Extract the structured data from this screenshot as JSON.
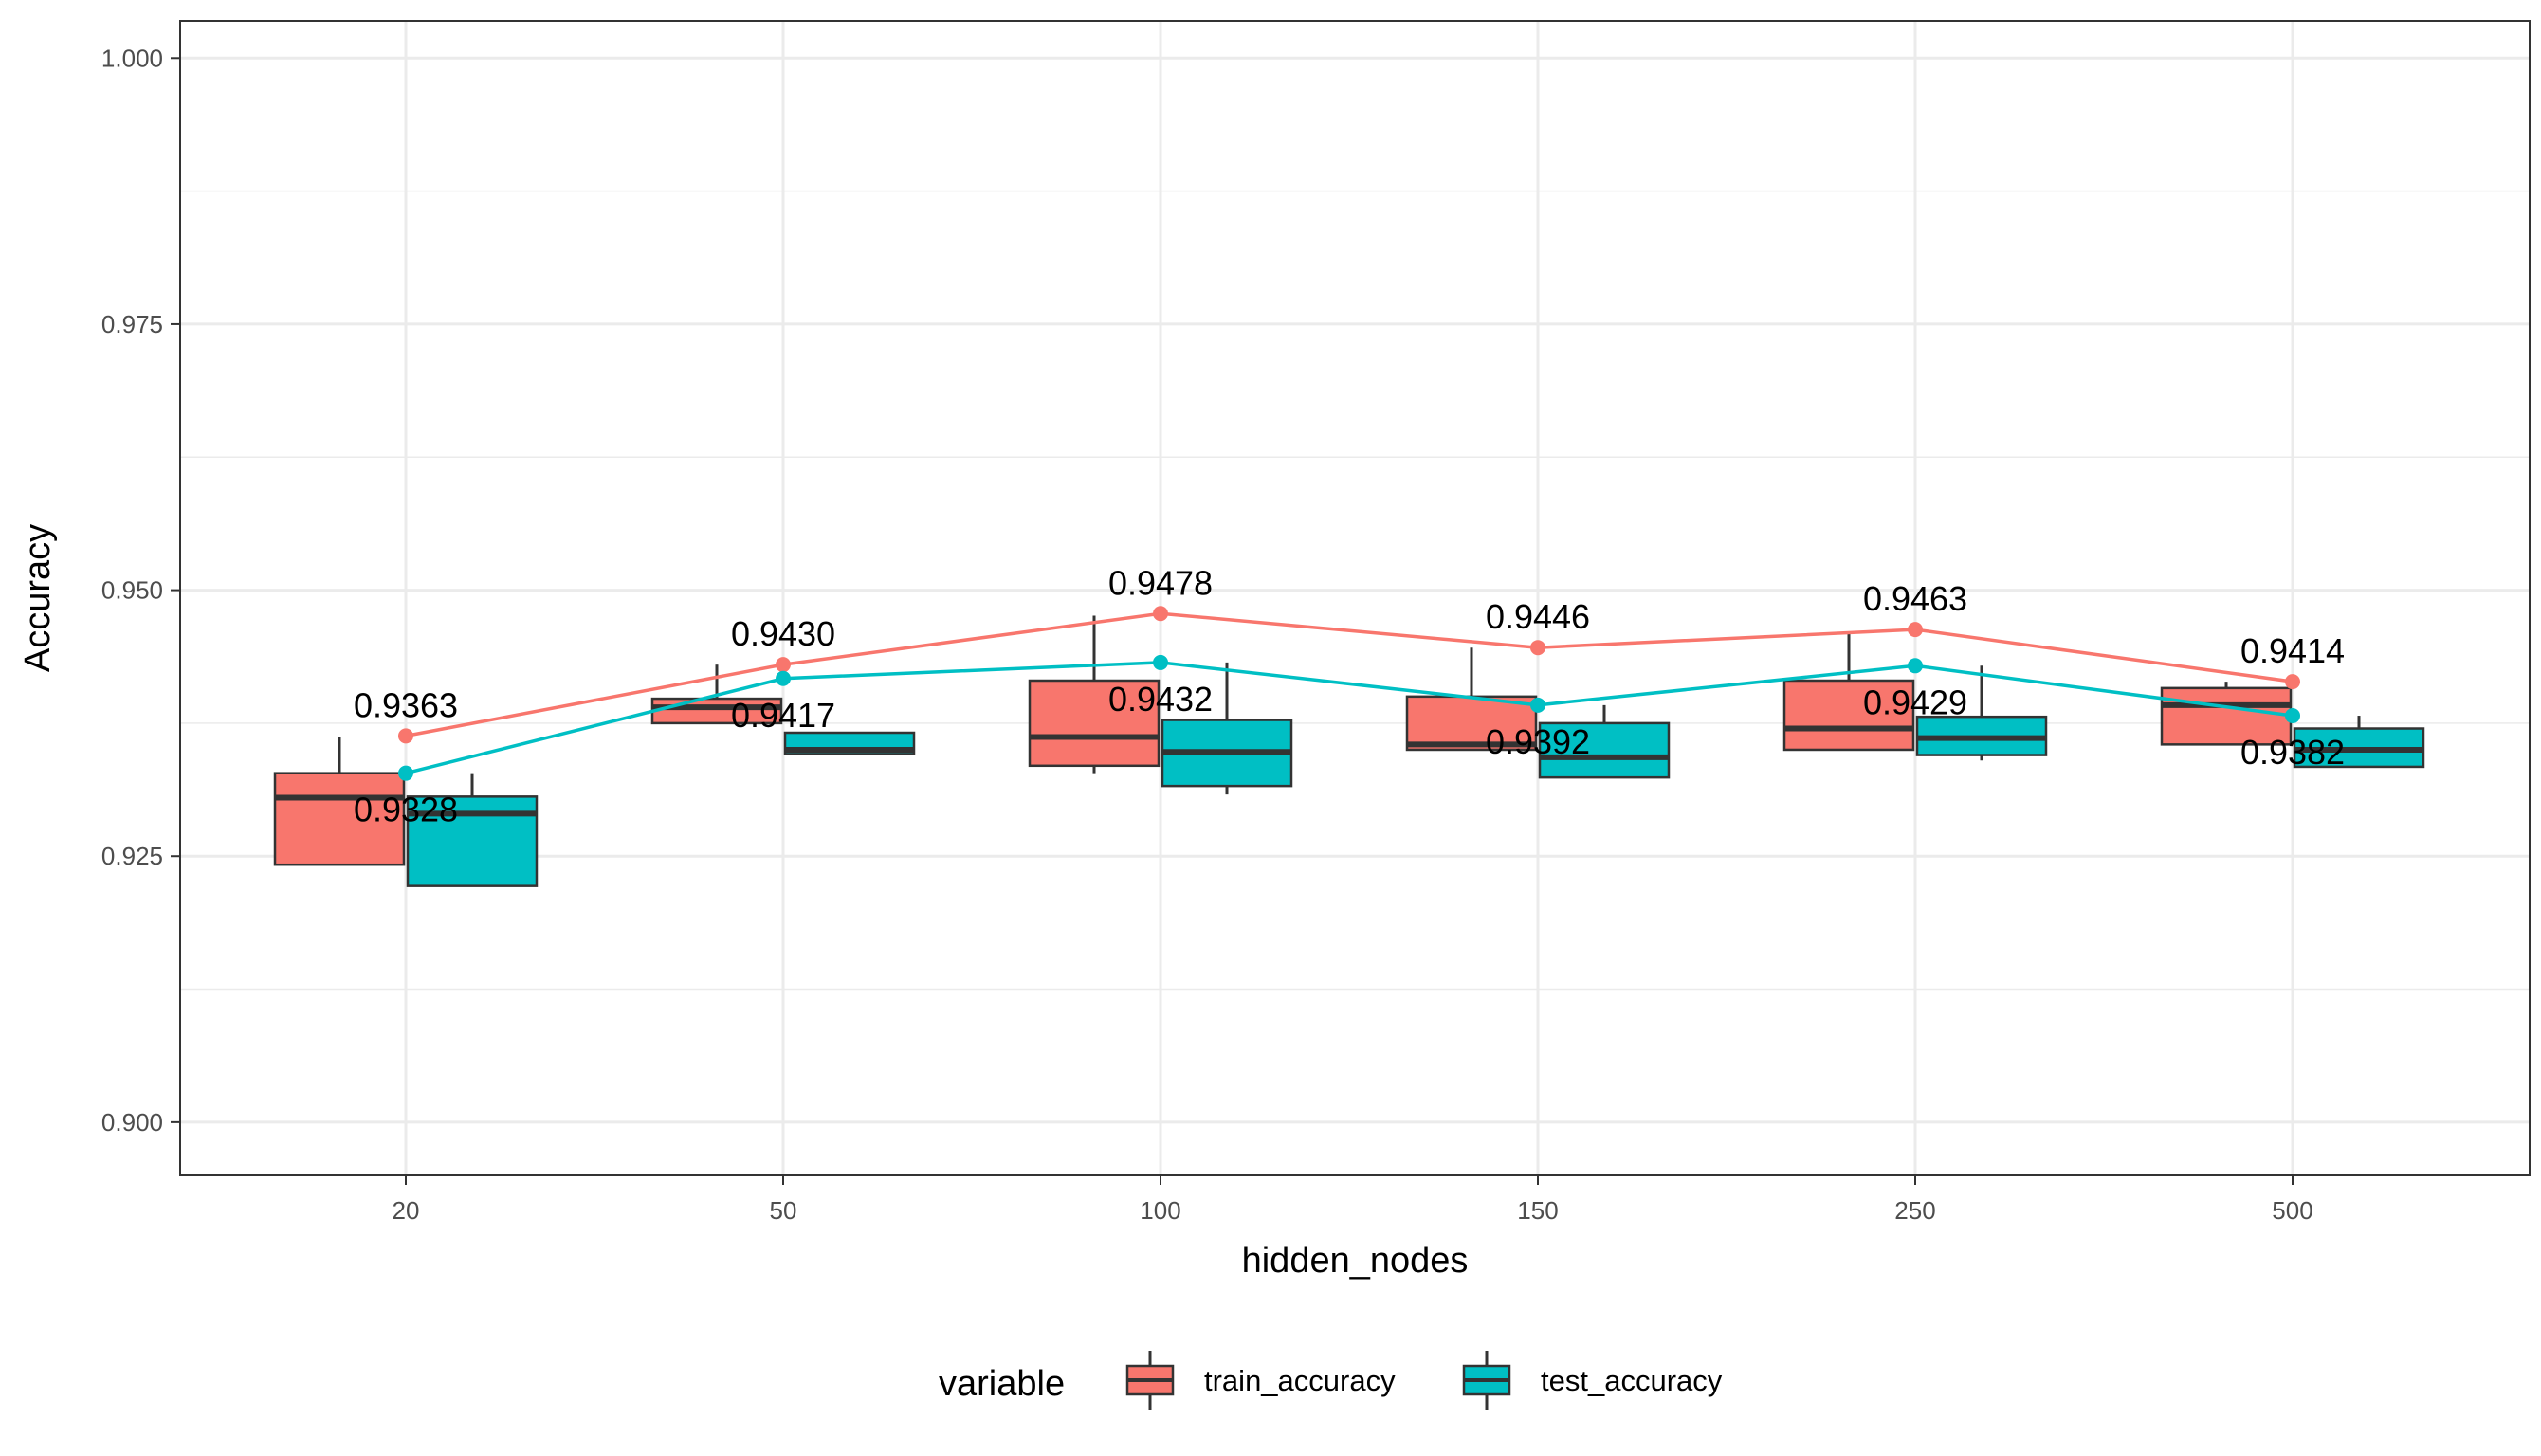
{
  "chart_data": {
    "type": "box",
    "xlabel": "hidden_nodes",
    "ylabel": "Accuracy",
    "categories": [
      "20",
      "50",
      "100",
      "150",
      "250",
      "500"
    ],
    "ylim": [
      0.895,
      1.0035
    ],
    "yticks": [
      0.9,
      0.925,
      0.95,
      0.975,
      1.0
    ],
    "ytick_labels": [
      "0.900",
      "0.925",
      "0.950",
      "0.975",
      "1.000"
    ],
    "grid": true,
    "legend": {
      "title": "variable",
      "position": "bottom",
      "entries": [
        "train_accuracy",
        "test_accuracy"
      ]
    },
    "colors": {
      "train_accuracy": "#F8766D",
      "test_accuracy": "#00BFC4"
    },
    "series": [
      {
        "name": "train_accuracy",
        "boxes": [
          {
            "whisker_low": 0.9242,
            "q1": 0.9242,
            "median": 0.9305,
            "q3": 0.9328,
            "whisker_high": 0.9362
          },
          {
            "whisker_low": 0.9375,
            "q1": 0.9375,
            "median": 0.939,
            "q3": 0.9398,
            "whisker_high": 0.943
          },
          {
            "whisker_low": 0.9328,
            "q1": 0.9335,
            "median": 0.9362,
            "q3": 0.9415,
            "whisker_high": 0.9476
          },
          {
            "whisker_low": 0.935,
            "q1": 0.935,
            "median": 0.9355,
            "q3": 0.94,
            "whisker_high": 0.9446
          },
          {
            "whisker_low": 0.935,
            "q1": 0.935,
            "median": 0.937,
            "q3": 0.9415,
            "whisker_high": 0.9461
          },
          {
            "whisker_low": 0.9355,
            "q1": 0.9355,
            "median": 0.9392,
            "q3": 0.9408,
            "whisker_high": 0.9414
          }
        ],
        "means": [
          0.9363,
          0.943,
          0.9478,
          0.9446,
          0.9463,
          0.9414
        ],
        "labels": [
          "0.9363",
          "0.9430",
          "0.9478",
          "0.9446",
          "0.9463",
          "0.9414"
        ]
      },
      {
        "name": "test_accuracy",
        "boxes": [
          {
            "whisker_low": 0.9222,
            "q1": 0.9222,
            "median": 0.929,
            "q3": 0.9306,
            "whisker_high": 0.9328
          },
          {
            "whisker_low": 0.9346,
            "q1": 0.9346,
            "median": 0.935,
            "q3": 0.9366,
            "whisker_high": 0.9366
          },
          {
            "whisker_low": 0.9308,
            "q1": 0.9316,
            "median": 0.9348,
            "q3": 0.9378,
            "whisker_high": 0.9432
          },
          {
            "whisker_low": 0.9324,
            "q1": 0.9324,
            "median": 0.9343,
            "q3": 0.9375,
            "whisker_high": 0.9392
          },
          {
            "whisker_low": 0.934,
            "q1": 0.9345,
            "median": 0.9361,
            "q3": 0.9381,
            "whisker_high": 0.9429
          },
          {
            "whisker_low": 0.9334,
            "q1": 0.9334,
            "median": 0.935,
            "q3": 0.937,
            "whisker_high": 0.9382
          }
        ],
        "means": [
          0.9328,
          0.9417,
          0.9432,
          0.9392,
          0.9429,
          0.9382
        ],
        "labels": [
          "0.9328",
          "0.9417",
          "0.9432",
          "0.9392",
          "0.9429",
          "0.9382"
        ]
      }
    ]
  }
}
